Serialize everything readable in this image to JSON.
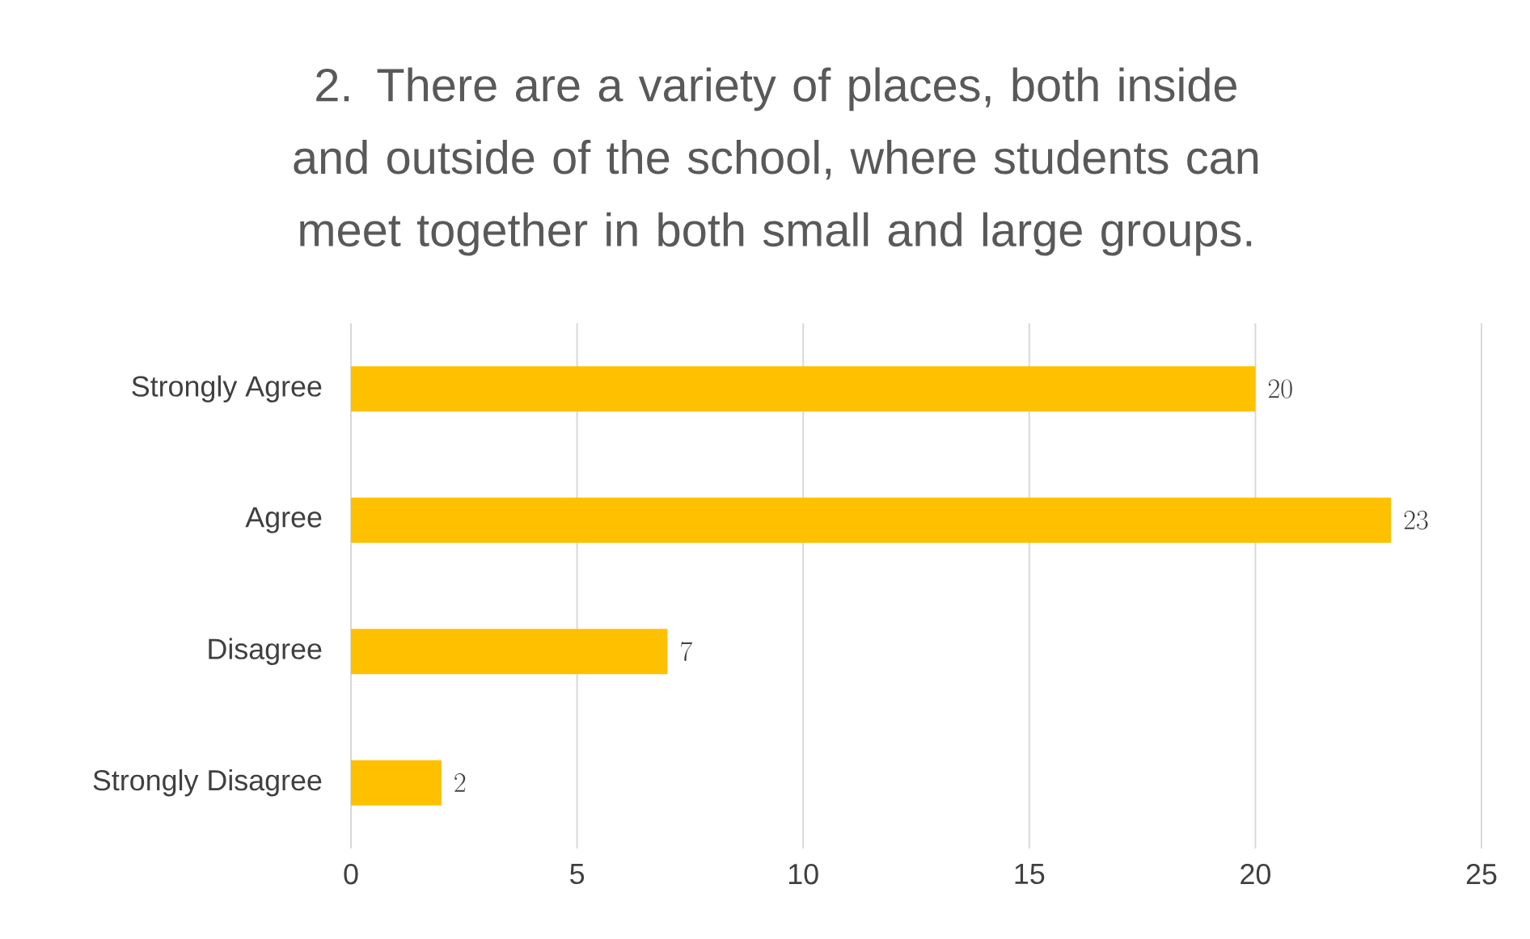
{
  "chart_data": {
    "type": "bar",
    "orientation": "horizontal",
    "title": "2. There are a variety of places, both inside and outside of the school, where students can meet together in both small and large groups.",
    "categories": [
      "Strongly Agree",
      "Agree",
      "Disagree",
      "Strongly Disagree"
    ],
    "values": [
      20,
      23,
      7,
      2
    ],
    "color": "#ffc000",
    "xlim": [
      0,
      25
    ],
    "xticks": [
      0,
      5,
      10,
      15,
      20,
      25
    ],
    "grid": "x",
    "data_labels": true
  }
}
